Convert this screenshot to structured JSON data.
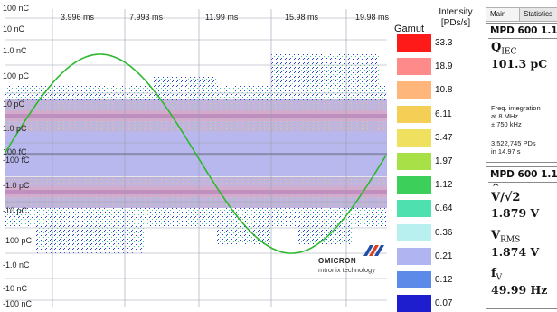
{
  "plot": {
    "y_labels": [
      "100 nC",
      "10 nC",
      "1.0 nC",
      "100 pC",
      "10 pC",
      "1.0 pC",
      "100 fC",
      "-100 fC",
      "-1.0 pC",
      "-10 pC",
      "-100 pC",
      "-1.0 nC",
      "-10 nC",
      "-100 nC"
    ],
    "time_labels": [
      "3.996 ms",
      "7.993 ms",
      "11.99 ms",
      "15.98 ms",
      "19.98 ms"
    ],
    "sine_color": "#2db82d"
  },
  "scale": {
    "gamut_label": "Gamut",
    "intensity_label": "Intensity",
    "intensity_unit": "[PDs/s]",
    "steps": [
      {
        "color": "#ff1a1a",
        "value": "33.3"
      },
      {
        "color": "#ff8a8a",
        "value": "18.9"
      },
      {
        "color": "#ffb67a",
        "value": "10.8"
      },
      {
        "color": "#f5cf55",
        "value": "6.11"
      },
      {
        "color": "#f0e060",
        "value": "3.47"
      },
      {
        "color": "#a8e048",
        "value": "1.97"
      },
      {
        "color": "#3ccf5a",
        "value": "1.12"
      },
      {
        "color": "#4fe0b0",
        "value": "0.64"
      },
      {
        "color": "#b8f0f0",
        "value": "0.36"
      },
      {
        "color": "#b0b4f0",
        "value": "0.21"
      },
      {
        "color": "#5c8ae8",
        "value": "0.12"
      },
      {
        "color": "#1e1ecf",
        "value": "0.07"
      }
    ]
  },
  "tabs": [
    "Main",
    "Statistics"
  ],
  "panel1": {
    "title": "MPD 600 1.1:",
    "q_symbol": "Q",
    "q_sub": "IEC",
    "q_value": "101.3 pC",
    "freq_line1": "Freq. integration",
    "freq_line2": "at 8 MHz",
    "freq_line3": "± 750 kHz",
    "count_line1": "3,522,745 PDs",
    "count_line2": "in 14.97 s"
  },
  "panel2": {
    "title": "MPD 600 1.1:",
    "vpk_symbol": "V/√2",
    "vpk_value": "1.879 V",
    "vrms_symbol": "V",
    "vrms_sub": "RMS",
    "vrms_value": "1.874 V",
    "f_symbol": "f",
    "f_sub": "V",
    "f_value": "49.99 Hz"
  },
  "logo": {
    "name": "OMICRON",
    "sub": "mtronix technology"
  }
}
